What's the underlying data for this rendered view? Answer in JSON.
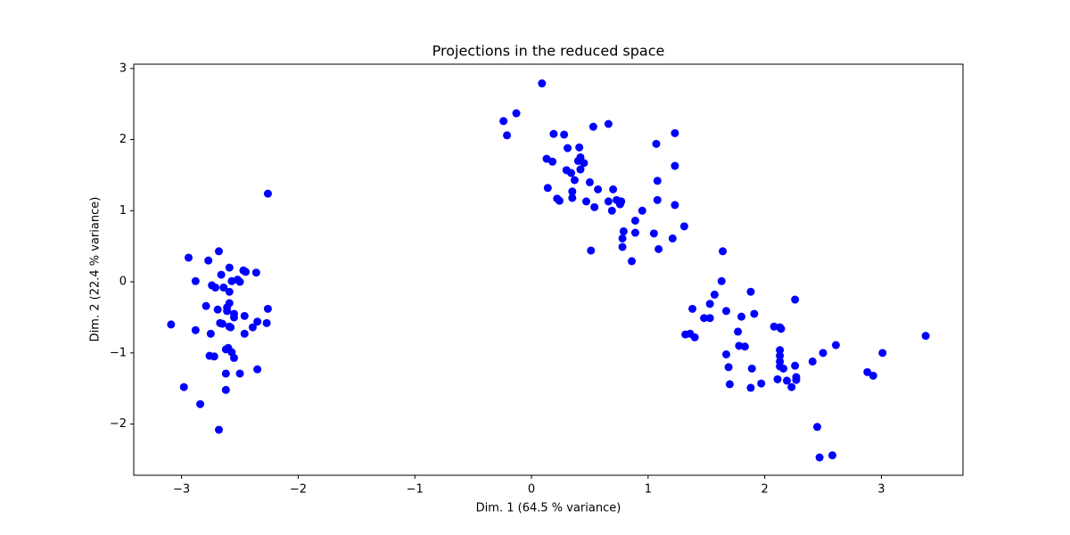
{
  "chart_data": {
    "type": "scatter",
    "title": "Projections in the reduced space",
    "x_label": "Dim. 1 (64.5 % variance)",
    "y_label": "Dim. 2 (22.4 % variance)",
    "color": "#0000ff",
    "x": [
      -3.09,
      -2.94,
      -2.88,
      -2.88,
      -2.98,
      -2.84,
      -2.68,
      -2.77,
      -2.79,
      -2.75,
      -2.74,
      -2.71,
      -2.76,
      -2.72,
      -2.68,
      -2.69,
      -2.66,
      -2.64,
      -2.67,
      -2.65,
      -2.61,
      -2.59,
      -2.59,
      -2.59,
      -2.61,
      -2.59,
      -2.58,
      -2.57,
      -2.55,
      -2.55,
      -2.62,
      -2.6,
      -2.57,
      -2.55,
      -2.62,
      -2.62,
      -2.52,
      -2.5,
      -2.5,
      -2.47,
      -2.45,
      -2.46,
      -2.46,
      -2.39,
      -2.36,
      -2.35,
      -2.35,
      -2.27,
      -2.26,
      -2.26,
      0.09,
      -0.24,
      -0.13,
      -0.21,
      0.13,
      0.14,
      0.18,
      0.19,
      0.22,
      0.24,
      0.28,
      0.31,
      0.3,
      0.34,
      0.35,
      0.35,
      0.4,
      0.41,
      0.42,
      0.42,
      0.37,
      0.45,
      0.47,
      0.5,
      0.53,
      0.54,
      0.57,
      0.51,
      0.66,
      0.66,
      0.7,
      0.69,
      0.73,
      0.76,
      0.77,
      0.78,
      0.79,
      0.78,
      0.86,
      0.89,
      0.89,
      0.95,
      1.05,
      1.07,
      1.08,
      1.08,
      1.09,
      1.21,
      1.23,
      1.23,
      1.23,
      1.31,
      1.64,
      1.63,
      1.38,
      1.57,
      1.53,
      1.48,
      1.53,
      1.32,
      1.36,
      1.4,
      1.67,
      1.8,
      1.88,
      1.91,
      1.77,
      1.78,
      1.83,
      1.67,
      1.69,
      1.7,
      1.89,
      1.88,
      1.97,
      2.08,
      2.13,
      2.13,
      2.13,
      2.13,
      2.13,
      2.16,
      2.11,
      2.19,
      2.23,
      2.26,
      2.26,
      2.27,
      2.27,
      2.41,
      2.5,
      2.61,
      2.45,
      2.47,
      2.58,
      2.88,
      2.93,
      3.01,
      3.38,
      2.14
    ],
    "values": [
      -0.6,
      0.34,
      0.01,
      -0.68,
      -1.48,
      -1.72,
      0.43,
      0.3,
      -0.34,
      -0.73,
      -0.05,
      -0.08,
      -1.04,
      -1.05,
      -2.08,
      -0.39,
      0.1,
      -0.08,
      -0.58,
      -0.59,
      -0.41,
      0.2,
      -0.14,
      -0.3,
      -0.36,
      -0.63,
      -0.64,
      0.01,
      -0.45,
      -0.5,
      -0.95,
      -0.93,
      -0.99,
      -1.07,
      -1.29,
      -1.52,
      0.03,
      0.0,
      -1.29,
      0.16,
      0.14,
      -0.48,
      -0.73,
      -0.64,
      0.13,
      -0.56,
      -1.23,
      -0.58,
      -0.38,
      1.24,
      2.79,
      2.26,
      2.37,
      2.06,
      1.73,
      1.32,
      1.69,
      2.08,
      1.17,
      1.14,
      2.07,
      1.88,
      1.57,
      1.53,
      1.27,
      1.18,
      1.7,
      1.89,
      1.75,
      1.58,
      1.43,
      1.67,
      1.13,
      1.4,
      2.18,
      1.05,
      1.3,
      0.44,
      2.22,
      1.13,
      1.3,
      1.0,
      1.15,
      1.09,
      1.13,
      0.61,
      0.71,
      0.49,
      0.29,
      0.86,
      0.69,
      1.0,
      0.68,
      1.94,
      1.42,
      1.15,
      0.46,
      0.61,
      2.09,
      1.63,
      1.08,
      0.78,
      0.43,
      0.01,
      -0.38,
      -0.18,
      -0.31,
      -0.51,
      -0.51,
      -0.74,
      -0.73,
      -0.78,
      -0.41,
      -0.49,
      -0.14,
      -0.45,
      -0.7,
      -0.9,
      -0.91,
      -1.02,
      -1.2,
      -1.44,
      -1.22,
      -1.49,
      -1.43,
      -0.63,
      -0.64,
      -0.96,
      -1.04,
      -1.12,
      -1.19,
      -1.22,
      -1.37,
      -1.39,
      -1.48,
      -1.18,
      -0.25,
      -1.34,
      -1.38,
      -1.12,
      -1.0,
      -0.89,
      -2.04,
      -2.47,
      -2.44,
      -1.27,
      -1.32,
      -1.0,
      -0.76,
      -0.66
    ],
    "xlim": [
      -3.41,
      3.7
    ],
    "ylim": [
      -2.72,
      3.06
    ],
    "xticks": [
      {
        "value": -3,
        "label": "−3"
      },
      {
        "value": -2,
        "label": "−2"
      },
      {
        "value": -1,
        "label": "−1"
      },
      0,
      1,
      2,
      3
    ],
    "yticks": [
      {
        "value": -2,
        "label": "−2"
      },
      {
        "value": -1,
        "label": "−1"
      },
      0,
      1,
      2,
      3
    ],
    "grid": false
  }
}
